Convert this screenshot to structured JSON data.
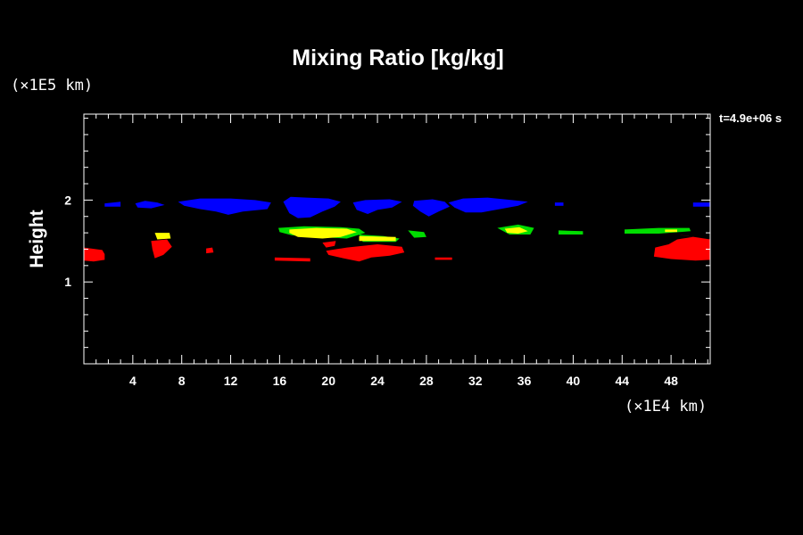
{
  "chart_data": {
    "type": "heatmap",
    "title": "Mixing Ratio [kg/kg]",
    "time_label": "t=4.9e+06 s",
    "xlabel": "",
    "ylabel": "Height",
    "x_unit": "(×1E4 km)",
    "y_unit": "(×1E5 km)",
    "xlim": [
      0,
      51.2
    ],
    "ylim": [
      0,
      3.05
    ],
    "x_ticks": [
      4,
      8,
      12,
      16,
      20,
      24,
      28,
      32,
      36,
      40,
      44,
      48
    ],
    "y_ticks": [
      1,
      2
    ],
    "x_minor_step": 1,
    "y_minor_step": 0.2,
    "colors": {
      "background": "#000000",
      "axis": "#ffffff",
      "blue": "#0000ff",
      "green": "#00dd00",
      "yellow": "#ffff00",
      "red": "#ff0000"
    },
    "regions": [
      {
        "color": "blue",
        "points": [
          [
            1.7,
            1.96
          ],
          [
            3.0,
            1.98
          ],
          [
            3.0,
            1.92
          ],
          [
            1.7,
            1.92
          ]
        ]
      },
      {
        "color": "blue",
        "points": [
          [
            4.2,
            1.96
          ],
          [
            5.0,
            1.99
          ],
          [
            6.0,
            1.97
          ],
          [
            6.6,
            1.94
          ],
          [
            5.5,
            1.9
          ],
          [
            4.4,
            1.91
          ]
        ]
      },
      {
        "color": "blue",
        "points": [
          [
            7.7,
            1.98
          ],
          [
            9.5,
            2.02
          ],
          [
            12.0,
            2.02
          ],
          [
            14.0,
            2.0
          ],
          [
            15.3,
            1.97
          ],
          [
            15.0,
            1.89
          ],
          [
            13.0,
            1.86
          ],
          [
            11.8,
            1.82
          ],
          [
            10.8,
            1.86
          ],
          [
            9.5,
            1.89
          ],
          [
            8.2,
            1.93
          ]
        ]
      },
      {
        "color": "blue",
        "points": [
          [
            16.3,
            1.98
          ],
          [
            16.9,
            2.04
          ],
          [
            18.2,
            2.03
          ],
          [
            20.0,
            2.02
          ],
          [
            21.0,
            1.98
          ],
          [
            20.5,
            1.92
          ],
          [
            19.5,
            1.86
          ],
          [
            18.5,
            1.79
          ],
          [
            17.5,
            1.78
          ],
          [
            16.8,
            1.84
          ]
        ]
      },
      {
        "color": "blue",
        "points": [
          [
            22.0,
            1.97
          ],
          [
            23.0,
            2.0
          ],
          [
            25.0,
            2.01
          ],
          [
            26.0,
            1.98
          ],
          [
            25.2,
            1.91
          ],
          [
            24.0,
            1.88
          ],
          [
            23.2,
            1.83
          ],
          [
            22.3,
            1.88
          ]
        ]
      },
      {
        "color": "blue",
        "points": [
          [
            27.0,
            1.99
          ],
          [
            28.5,
            2.01
          ],
          [
            29.5,
            1.98
          ],
          [
            29.9,
            1.92
          ],
          [
            29.0,
            1.86
          ],
          [
            28.2,
            1.8
          ],
          [
            27.5,
            1.86
          ],
          [
            26.9,
            1.93
          ]
        ]
      },
      {
        "color": "blue",
        "points": [
          [
            29.8,
            1.97
          ],
          [
            31.0,
            2.02
          ],
          [
            33.0,
            2.03
          ],
          [
            35.0,
            2.0
          ],
          [
            36.3,
            1.98
          ],
          [
            35.5,
            1.93
          ],
          [
            34.0,
            1.89
          ],
          [
            32.5,
            1.85
          ],
          [
            31.2,
            1.85
          ],
          [
            30.3,
            1.91
          ]
        ]
      },
      {
        "color": "blue",
        "points": [
          [
            38.5,
            1.97
          ],
          [
            39.2,
            1.97
          ],
          [
            39.2,
            1.93
          ],
          [
            38.5,
            1.93
          ]
        ]
      },
      {
        "color": "blue",
        "points": [
          [
            49.8,
            1.97
          ],
          [
            51.2,
            1.97
          ],
          [
            51.2,
            1.92
          ],
          [
            49.8,
            1.92
          ]
        ]
      },
      {
        "color": "red",
        "points": [
          [
            0,
            1.42
          ],
          [
            1.5,
            1.39
          ],
          [
            1.7,
            1.34
          ],
          [
            1.7,
            1.27
          ],
          [
            0.8,
            1.25
          ],
          [
            0,
            1.26
          ]
        ]
      },
      {
        "color": "red",
        "points": [
          [
            5.5,
            1.5
          ],
          [
            6.8,
            1.52
          ],
          [
            7.2,
            1.43
          ],
          [
            6.5,
            1.33
          ],
          [
            5.8,
            1.29
          ],
          [
            5.6,
            1.4
          ]
        ]
      },
      {
        "color": "red",
        "points": [
          [
            10.0,
            1.41
          ],
          [
            10.5,
            1.42
          ],
          [
            10.6,
            1.36
          ],
          [
            10.0,
            1.35
          ]
        ]
      },
      {
        "color": "red",
        "points": [
          [
            15.6,
            1.3
          ],
          [
            18.5,
            1.29
          ],
          [
            18.5,
            1.25
          ],
          [
            15.6,
            1.26
          ]
        ]
      },
      {
        "color": "red",
        "points": [
          [
            19.5,
            1.48
          ],
          [
            20.6,
            1.5
          ],
          [
            20.5,
            1.44
          ],
          [
            19.8,
            1.42
          ]
        ]
      },
      {
        "color": "red",
        "points": [
          [
            21.5,
            1.42
          ],
          [
            24.0,
            1.46
          ],
          [
            26.0,
            1.43
          ],
          [
            26.2,
            1.36
          ],
          [
            25.0,
            1.32
          ],
          [
            23.5,
            1.3
          ],
          [
            22.5,
            1.25
          ],
          [
            21.2,
            1.29
          ],
          [
            20.0,
            1.33
          ],
          [
            19.8,
            1.38
          ]
        ]
      },
      {
        "color": "red",
        "points": [
          [
            28.7,
            1.3
          ],
          [
            30.1,
            1.3
          ],
          [
            30.1,
            1.27
          ],
          [
            28.7,
            1.27
          ]
        ]
      },
      {
        "color": "red",
        "points": [
          [
            46.7,
            1.62
          ],
          [
            51.2,
            1.52
          ],
          [
            51.2,
            1.27
          ],
          [
            50.0,
            1.26
          ],
          [
            48.0,
            1.28
          ],
          [
            46.6,
            1.31
          ],
          [
            46.7,
            1.42
          ],
          [
            47.8,
            1.46
          ],
          [
            48.5,
            1.52
          ],
          [
            49.8,
            1.55
          ]
        ]
      },
      {
        "color": "green",
        "points": [
          [
            15.9,
            1.66
          ],
          [
            18.0,
            1.68
          ],
          [
            21.0,
            1.67
          ],
          [
            22.5,
            1.65
          ],
          [
            23.0,
            1.6
          ],
          [
            21.5,
            1.53
          ],
          [
            19.0,
            1.55
          ],
          [
            17.0,
            1.57
          ],
          [
            16.0,
            1.61
          ]
        ]
      },
      {
        "color": "green",
        "points": [
          [
            22.5,
            1.58
          ],
          [
            24.5,
            1.56
          ],
          [
            25.8,
            1.53
          ],
          [
            25.5,
            1.49
          ],
          [
            22.8,
            1.49
          ]
        ]
      },
      {
        "color": "green",
        "points": [
          [
            26.5,
            1.63
          ],
          [
            27.8,
            1.61
          ],
          [
            28.0,
            1.55
          ],
          [
            27.0,
            1.54
          ]
        ]
      },
      {
        "color": "green",
        "points": [
          [
            33.8,
            1.66
          ],
          [
            35.5,
            1.7
          ],
          [
            36.8,
            1.66
          ],
          [
            36.5,
            1.58
          ],
          [
            34.8,
            1.58
          ]
        ]
      },
      {
        "color": "green",
        "points": [
          [
            38.8,
            1.63
          ],
          [
            40.8,
            1.62
          ],
          [
            40.8,
            1.58
          ],
          [
            38.8,
            1.58
          ]
        ]
      },
      {
        "color": "green",
        "points": [
          [
            44.2,
            1.64
          ],
          [
            47.0,
            1.66
          ],
          [
            49.5,
            1.66
          ],
          [
            49.6,
            1.62
          ],
          [
            47.0,
            1.59
          ],
          [
            44.2,
            1.59
          ]
        ]
      },
      {
        "color": "yellow",
        "points": [
          [
            5.8,
            1.6
          ],
          [
            7.0,
            1.6
          ],
          [
            7.1,
            1.53
          ],
          [
            6.0,
            1.52
          ]
        ]
      },
      {
        "color": "yellow",
        "points": [
          [
            16.8,
            1.64
          ],
          [
            19.0,
            1.66
          ],
          [
            21.5,
            1.65
          ],
          [
            22.3,
            1.61
          ],
          [
            21.0,
            1.55
          ],
          [
            19.5,
            1.53
          ],
          [
            17.5,
            1.55
          ],
          [
            16.8,
            1.6
          ]
        ]
      },
      {
        "color": "yellow",
        "points": [
          [
            22.5,
            1.56
          ],
          [
            25.5,
            1.55
          ],
          [
            25.5,
            1.5
          ],
          [
            22.5,
            1.5
          ]
        ]
      },
      {
        "color": "yellow",
        "points": [
          [
            34.4,
            1.65
          ],
          [
            35.6,
            1.67
          ],
          [
            36.3,
            1.62
          ],
          [
            35.5,
            1.59
          ],
          [
            34.6,
            1.6
          ]
        ]
      },
      {
        "color": "yellow",
        "points": [
          [
            47.5,
            1.64
          ],
          [
            48.5,
            1.64
          ],
          [
            48.5,
            1.61
          ],
          [
            47.5,
            1.61
          ]
        ]
      }
    ]
  }
}
